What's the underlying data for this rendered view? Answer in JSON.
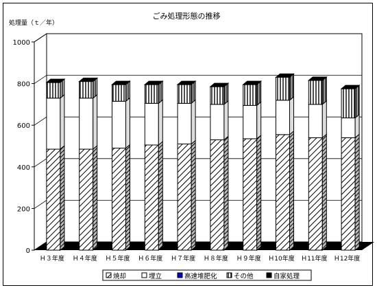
{
  "chart_data": {
    "type": "bar",
    "stacked": true,
    "three_d": true,
    "title": "ごみ処理形態の推移",
    "ylabel": "処理量（ｔ／年）",
    "xlabel": "",
    "ylim": [
      0,
      1000
    ],
    "yticks": [
      "0",
      "200",
      "400",
      "600",
      "800",
      "1000"
    ],
    "grid": true,
    "legend_position": "bottom",
    "categories": [
      "Ｈ３年度",
      "Ｈ４年度",
      "Ｈ５年度",
      "Ｈ６年度",
      "Ｈ７年度",
      "Ｈ８年度",
      "Ｈ９年度",
      "Ｈ10年度",
      "Ｈ11年度",
      "Ｈ12年度"
    ],
    "series": [
      {
        "name": "焼却",
        "pattern": "diagonal-hatch",
        "values": [
          485,
          485,
          490,
          505,
          510,
          530,
          535,
          555,
          540,
          540
        ]
      },
      {
        "name": "埋立",
        "pattern": "white",
        "values": [
          245,
          245,
          225,
          200,
          195,
          170,
          160,
          165,
          160,
          95
        ]
      },
      {
        "name": "高速堆肥化",
        "pattern": "solid-blue",
        "color": "#0000cc",
        "values": [
          0,
          0,
          0,
          0,
          0,
          0,
          0,
          0,
          0,
          0
        ]
      },
      {
        "name": "その他",
        "pattern": "vertical-lines",
        "values": [
          75,
          80,
          80,
          90,
          90,
          85,
          100,
          110,
          115,
          140
        ]
      },
      {
        "name": "自家処理",
        "pattern": "solid-black",
        "color": "#000000",
        "values": [
          0,
          0,
          0,
          0,
          0,
          0,
          0,
          0,
          0,
          0
        ]
      }
    ]
  }
}
